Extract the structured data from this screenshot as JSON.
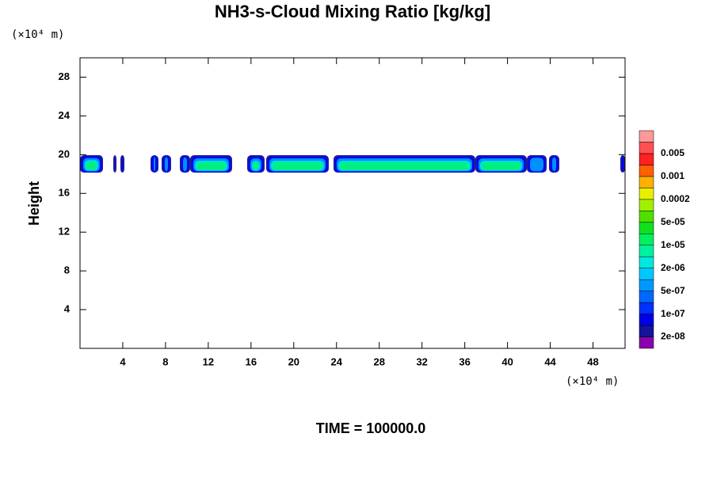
{
  "chart_data": {
    "type": "contour",
    "title": "NH3-s-Cloud Mixing Ratio [kg/kg]",
    "y_unit": "(×10⁴ m)",
    "x_unit": "(×10⁴ m)",
    "ylabel": "Height",
    "footer": "TIME = 100000.0",
    "xlim": [
      0,
      51
    ],
    "xticks": [
      4,
      8,
      12,
      16,
      20,
      24,
      28,
      32,
      36,
      40,
      44,
      48
    ],
    "ylim": [
      0,
      30
    ],
    "yticks": [
      4,
      8,
      12,
      16,
      20,
      24,
      28
    ],
    "colorbar": {
      "colors": [
        "#8a00b0",
        "#14149a",
        "#0000e6",
        "#0030ff",
        "#0068ff",
        "#0098ff",
        "#00c8ff",
        "#00e8e0",
        "#00f0a0",
        "#00f060",
        "#10e020",
        "#50e000",
        "#a0f000",
        "#e8f000",
        "#ffb000",
        "#ff6000",
        "#ff2020",
        "#ff5050",
        "#ff9898"
      ],
      "ticks": [
        {
          "value": 2e-08,
          "label": "2e-08"
        },
        {
          "value": 1e-07,
          "label": "1e-07"
        },
        {
          "value": 5e-07,
          "label": "5e-07"
        },
        {
          "value": 2e-06,
          "label": "2e-06"
        },
        {
          "value": 1e-05,
          "label": "1e-05"
        },
        {
          "value": 5e-05,
          "label": "5e-05"
        },
        0.0002,
        0.001,
        0.005
      ]
    }
  }
}
